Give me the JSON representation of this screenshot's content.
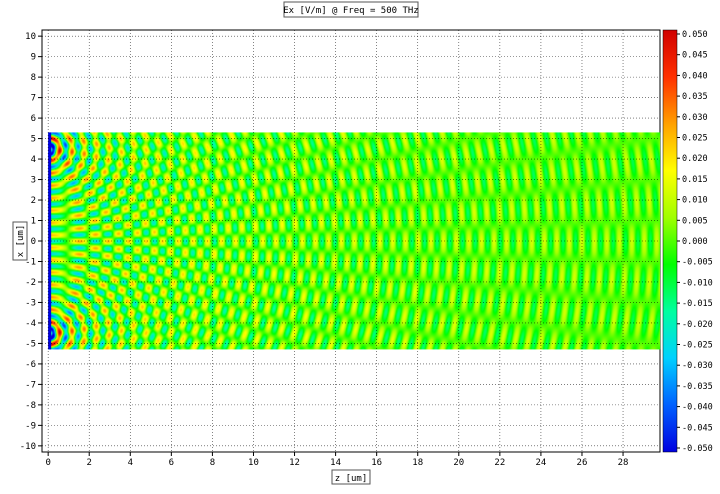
{
  "chart_data": {
    "type": "heatmap",
    "title": "Ex [V/m] @ Freq = 500 THz",
    "xlabel": "z [um]",
    "ylabel": "x [um]",
    "xlim": [
      -0.3,
      29.8
    ],
    "ylim": [
      -10.3,
      10.3
    ],
    "x_ticks": [
      0,
      2,
      4,
      6,
      8,
      10,
      12,
      14,
      16,
      18,
      20,
      22,
      24,
      26,
      28
    ],
    "y_ticks": [
      10,
      9,
      8,
      7,
      6,
      5,
      4,
      3,
      2,
      1,
      0,
      -1,
      -2,
      -3,
      -4,
      -5,
      -6,
      -7,
      -8,
      -9,
      -10
    ],
    "grid": true,
    "field_region": {
      "z_range": [
        0,
        29.8
      ],
      "x_range": [
        -5.3,
        5.3
      ]
    },
    "sources": [
      {
        "z": 0,
        "x": 4.5
      },
      {
        "z": 0,
        "x": -4.5
      }
    ],
    "colorbar": {
      "min": -0.05,
      "max": 0.05,
      "tick_labels": [
        "0.050",
        "0.045",
        "0.040",
        "0.035",
        "0.030",
        "0.025",
        "0.020",
        "0.015",
        "0.010",
        "0.005",
        "0.000",
        "-0.005",
        "-0.010",
        "-0.015",
        "-0.020",
        "-0.025",
        "-0.030",
        "-0.035",
        "-0.040",
        "-0.045",
        "-0.050"
      ],
      "colors": [
        "#0000e0",
        "#0060ff",
        "#00d0ff",
        "#00ffa0",
        "#00ff00",
        "#a0ff00",
        "#ffff00",
        "#ffa000",
        "#ff3000",
        "#d00000"
      ]
    }
  }
}
